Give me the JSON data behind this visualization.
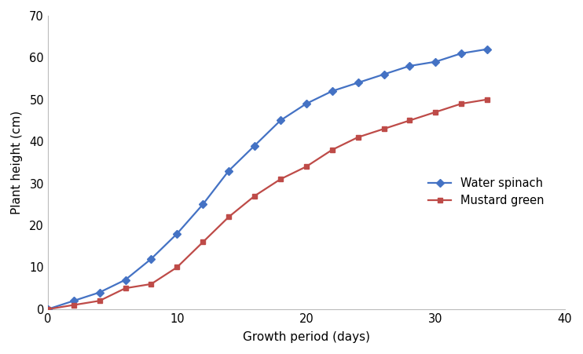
{
  "water_spinach_x": [
    0,
    2,
    4,
    6,
    8,
    10,
    12,
    14,
    16,
    18,
    20,
    22,
    24,
    26,
    28,
    30,
    32,
    34
  ],
  "water_spinach_y": [
    0,
    2,
    4,
    7,
    12,
    18,
    25,
    33,
    39,
    45,
    49,
    52,
    54,
    56,
    58,
    59,
    61,
    62
  ],
  "mustard_green_x": [
    0,
    2,
    4,
    6,
    8,
    10,
    12,
    14,
    16,
    18,
    20,
    22,
    24,
    26,
    28,
    30,
    32,
    34
  ],
  "mustard_green_y": [
    0,
    1,
    2,
    5,
    6,
    10,
    16,
    22,
    27,
    31,
    34,
    38,
    41,
    43,
    45,
    47,
    49,
    50
  ],
  "water_spinach_color": "#4472C4",
  "mustard_green_color": "#BE4B48",
  "water_spinach_label": "Water spinach",
  "mustard_green_label": "Mustard green",
  "xlabel": "Growth period (days)",
  "ylabel": "Plant height (cm)",
  "xlim": [
    0,
    40
  ],
  "ylim": [
    0,
    70
  ],
  "xticks": [
    0,
    10,
    20,
    30,
    40
  ],
  "yticks": [
    0,
    10,
    20,
    30,
    40,
    50,
    60,
    70
  ],
  "marker_water": "D",
  "marker_mustard": "s",
  "background_color": "#ffffff"
}
